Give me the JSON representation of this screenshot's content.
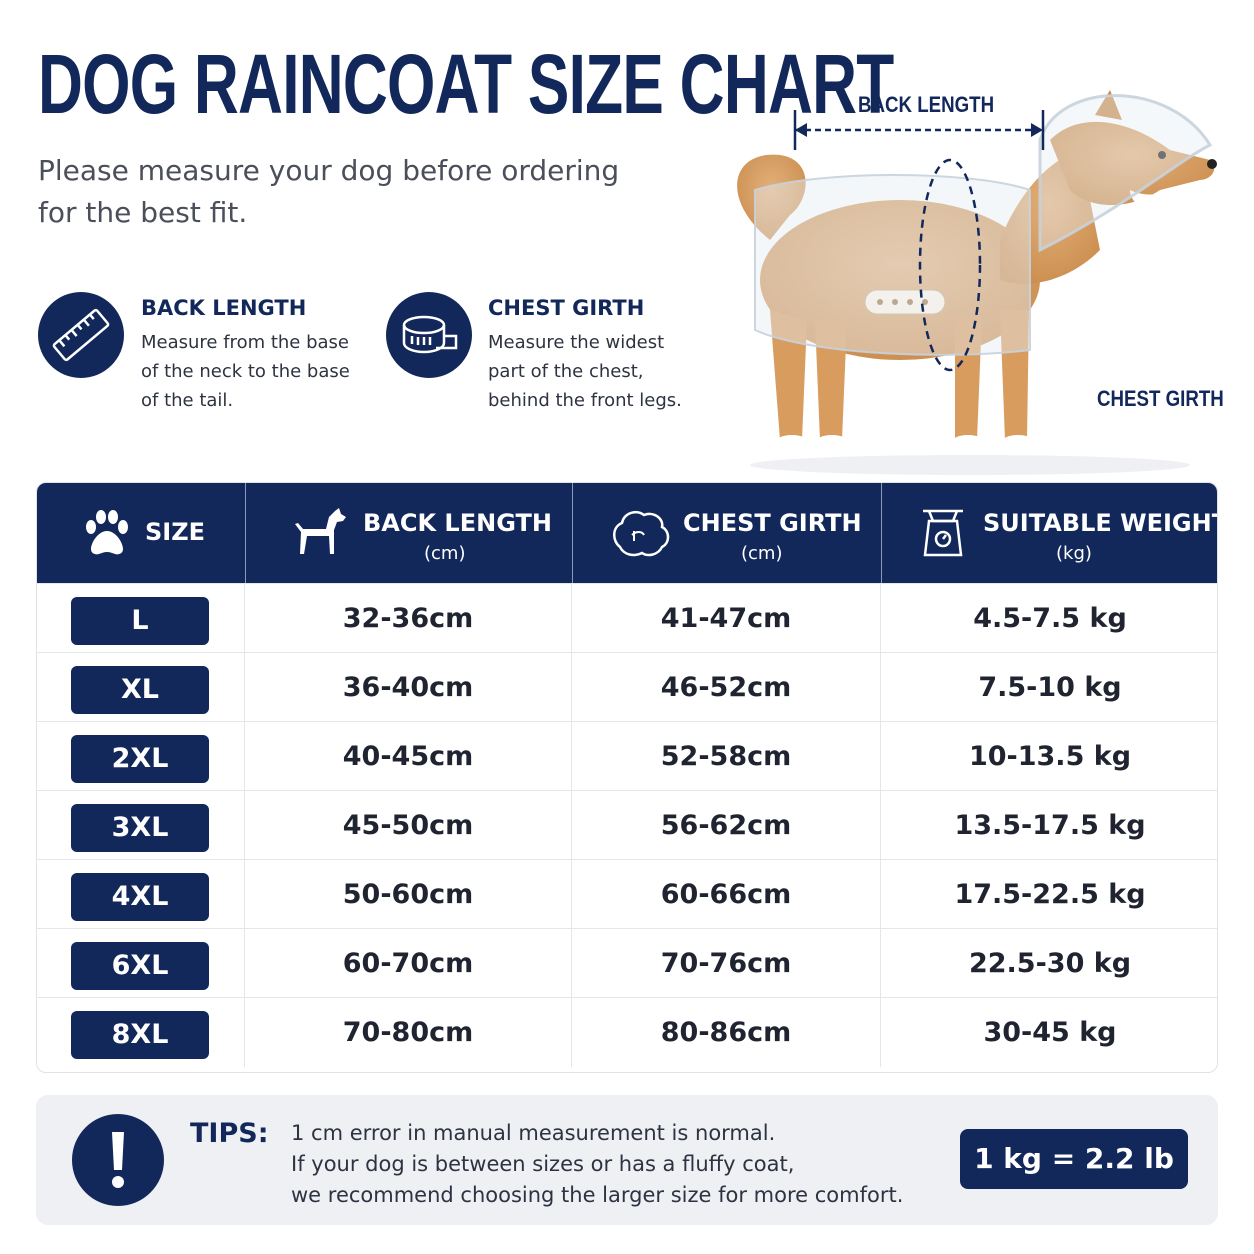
{
  "header": {
    "title": "DOG RAINCOAT SIZE CHART",
    "subtitle": "Please measure your dog before ordering for the best fit."
  },
  "measures": [
    {
      "title": "BACK LENGTH",
      "lines": [
        "Measure from the base",
        "of the neck to the base",
        "of the tail."
      ]
    },
    {
      "title": "CHEST GIRTH",
      "lines": [
        "Measure the widest",
        "part of the chest,",
        "behind the front legs."
      ]
    }
  ],
  "diagram": {
    "back_label": "BACK LENGTH",
    "chest_label": "CHEST GIRTH"
  },
  "table": {
    "headers": [
      {
        "label": "SIZE"
      },
      {
        "label": "BACK LENGTH",
        "unit": "(cm)"
      },
      {
        "label": "CHEST GIRTH",
        "unit": "(cm)"
      },
      {
        "label": "SUITABLE WEIGHT",
        "unit": "(kg)"
      }
    ],
    "rows": [
      [
        "L",
        "32-36cm",
        "41-47cm",
        "4.5-7.5 kg"
      ],
      [
        "XL",
        "36-40cm",
        "46-52cm",
        "7.5-10 kg"
      ],
      [
        "2XL",
        "40-45cm",
        "52-58cm",
        "10-13.5 kg"
      ],
      [
        "3XL",
        "45-50cm",
        "56-62cm",
        "13.5-17.5 kg"
      ],
      [
        "4XL",
        "50-60cm",
        "60-66cm",
        "17.5-22.5 kg"
      ],
      [
        "6XL",
        "60-70cm",
        "70-76cm",
        "22.5-30 kg"
      ],
      [
        "8XL",
        "70-80cm",
        "80-86cm",
        "30-45 kg"
      ]
    ]
  },
  "tips": {
    "label": "TIPS:",
    "lines": [
      "1 cm error in manual measurement is normal.",
      "If your dog is between sizes or has a fluffy coat,",
      "we recommend choosing the larger size for more comfort."
    ],
    "conversion": "1 kg = 2.2 lb"
  }
}
